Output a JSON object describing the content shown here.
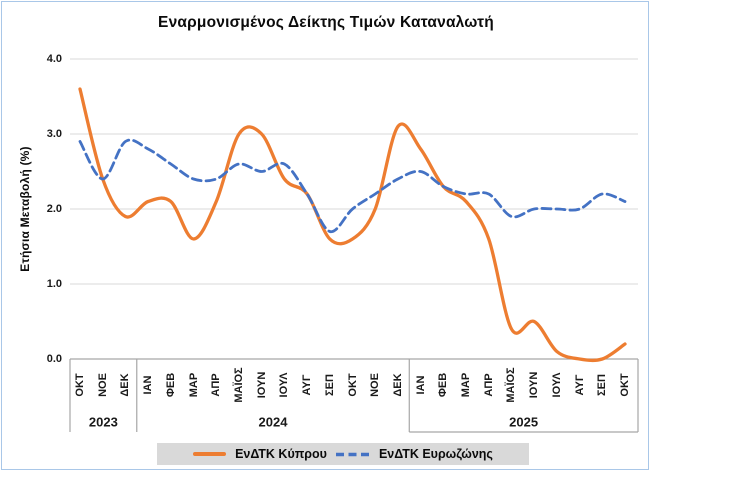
{
  "title": "Εναρμονισμένος Δείκτης Τιμών Καταναλωτή",
  "y_axis_title": "Ετήσια Μεταβολή (%)",
  "y_ticks": [
    "4.0",
    "3.0",
    "2.0",
    "1.0",
    "0.0"
  ],
  "legend": [
    {
      "label": "ΕνΔΤΚ Κύπρου",
      "color": "#ED7D31",
      "style": "solid"
    },
    {
      "label": "ΕνΔΤΚ Ευρωζώνης",
      "color": "#4472C4",
      "style": "dashed"
    }
  ],
  "colors": {
    "cyprus_line": "#ED7D31",
    "eurozone_line": "#4472C4",
    "gridline": "#D9D9D9",
    "axis_line": "#A6A6A6",
    "frame_border": "#A9C7E8",
    "legend_background": "#D9D9D9",
    "text": "#0B0B0B"
  },
  "chart_data": {
    "type": "line",
    "title": "Εναρμονισμένος Δείκτης Τιμών Καταναλωτή",
    "xlabel": "",
    "ylabel": "Ετήσια Μεταβολή (%)",
    "ylim": [
      0,
      4
    ],
    "y_tick_step": 1.0,
    "grid": true,
    "legend_position": "bottom",
    "categories": [
      "ΟΚΤ",
      "ΝΟΕ",
      "ΔΕΚ",
      "ΙΑΝ",
      "ΦΕΒ",
      "ΜΑΡ",
      "ΑΠΡ",
      "ΜΑΪΟΣ",
      "ΙΟΥΝ",
      "ΙΟΥΛ",
      "ΑΥΓ",
      "ΣΕΠ",
      "ΟΚΤ",
      "ΝΟΕ",
      "ΔΕΚ",
      "ΙΑΝ",
      "ΦΕΒ",
      "ΜΑΡ",
      "ΑΠΡ",
      "ΜΑΪΟΣ",
      "ΙΟΥΝ",
      "ΙΟΥΛ",
      "ΑΥΓ",
      "ΣΕΠ",
      "ΟΚΤ"
    ],
    "year_groups": [
      {
        "label": "2023",
        "months": 3
      },
      {
        "label": "2024",
        "months": 12
      },
      {
        "label": "2025",
        "months": 10
      }
    ],
    "series": [
      {
        "name": "ΕνΔΤΚ Κύπρου",
        "color": "#ED7D31",
        "line_style": "solid",
        "values": [
          3.6,
          2.4,
          1.9,
          2.1,
          2.1,
          1.6,
          2.1,
          3.0,
          3.0,
          2.4,
          2.2,
          1.6,
          1.6,
          2.0,
          3.1,
          2.8,
          2.3,
          2.1,
          1.6,
          0.4,
          0.5,
          0.1,
          0.0,
          0.0,
          0.2
        ]
      },
      {
        "name": "ΕνΔΤΚ Ευρωζώνης",
        "color": "#4472C4",
        "line_style": "dashed",
        "values": [
          2.9,
          2.4,
          2.9,
          2.8,
          2.6,
          2.4,
          2.4,
          2.6,
          2.5,
          2.6,
          2.2,
          1.7,
          2.0,
          2.2,
          2.4,
          2.5,
          2.3,
          2.2,
          2.2,
          1.9,
          2.0,
          2.0,
          2.0,
          2.2,
          2.1
        ]
      }
    ]
  }
}
